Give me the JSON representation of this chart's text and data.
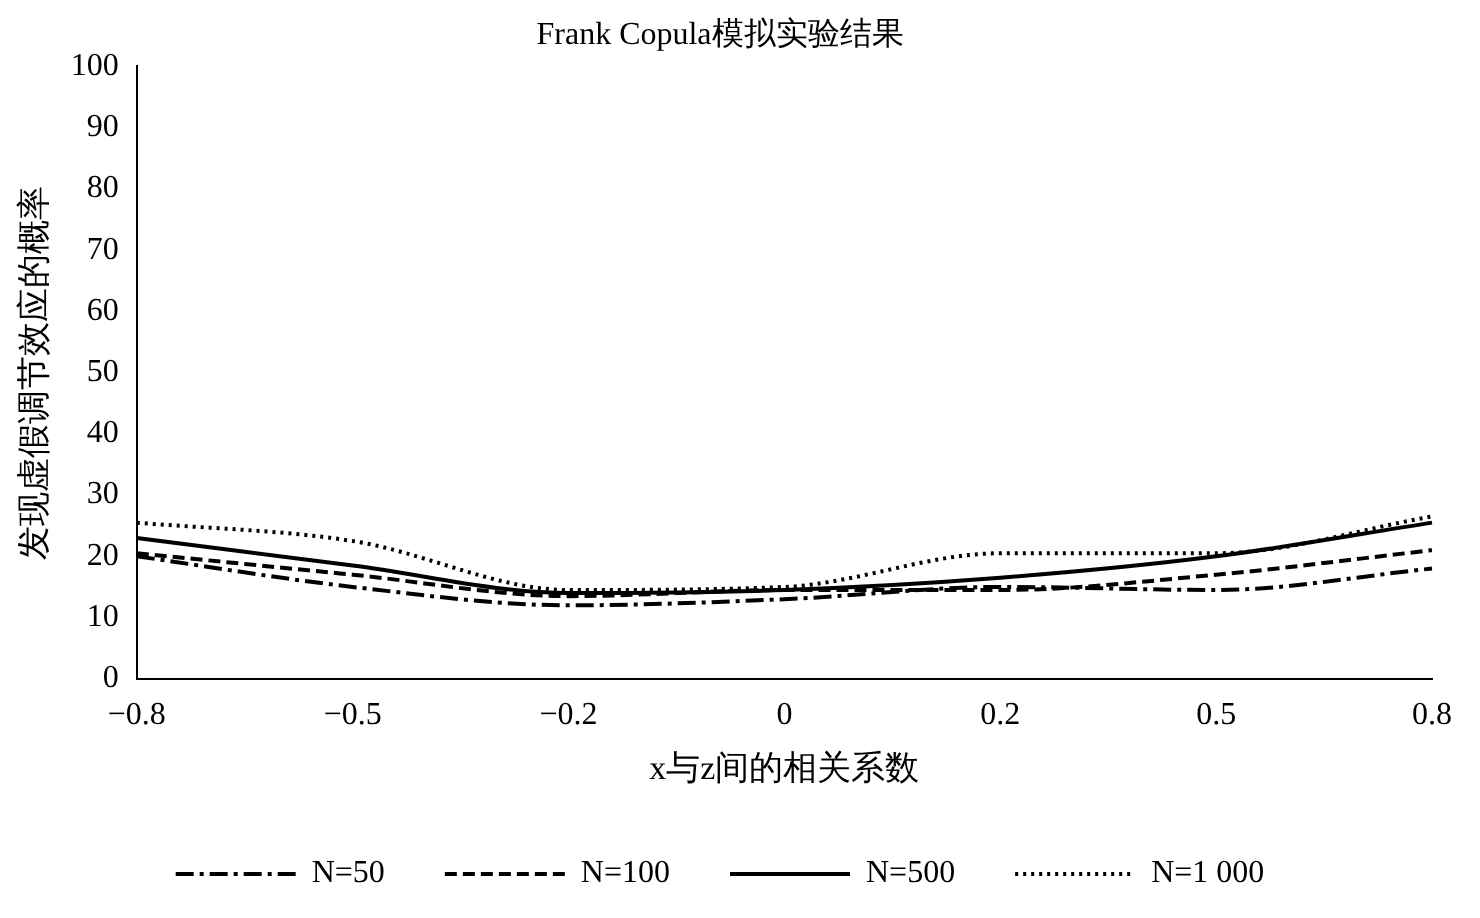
{
  "chart_data": {
    "type": "line",
    "title": "Frank Copula模拟实验结果",
    "xlabel": "x与z间的相关系数",
    "ylabel": "发现虚假调节效应的概率",
    "categories": [
      "−0.8",
      "−0.5",
      "−0.2",
      "0",
      "0.2",
      "0.5",
      "0.8"
    ],
    "series": [
      {
        "name": "N=50",
        "color": "#000000",
        "line_style": "dashdot",
        "values": [
          20,
          15,
          12,
          13,
          15,
          14.5,
          18
        ]
      },
      {
        "name": "N=100",
        "color": "#000000",
        "line_style": "dashed",
        "values": [
          20.5,
          17,
          13.5,
          14.5,
          14.5,
          17,
          21
        ]
      },
      {
        "name": "N=500",
        "color": "#000000",
        "line_style": "solid",
        "values": [
          23,
          18.5,
          14,
          14.5,
          16.5,
          20,
          25.5
        ]
      },
      {
        "name": "N=1 000",
        "color": "#000000",
        "line_style": "dotted",
        "values": [
          25.5,
          22.5,
          14.5,
          15,
          20.5,
          20.5,
          26.5
        ]
      }
    ],
    "ylim": [
      0,
      100
    ],
    "yticks": [
      0,
      10,
      20,
      30,
      40,
      50,
      60,
      70,
      80,
      90,
      100
    ],
    "grid": false,
    "legend": "bottom",
    "marker": "none"
  }
}
